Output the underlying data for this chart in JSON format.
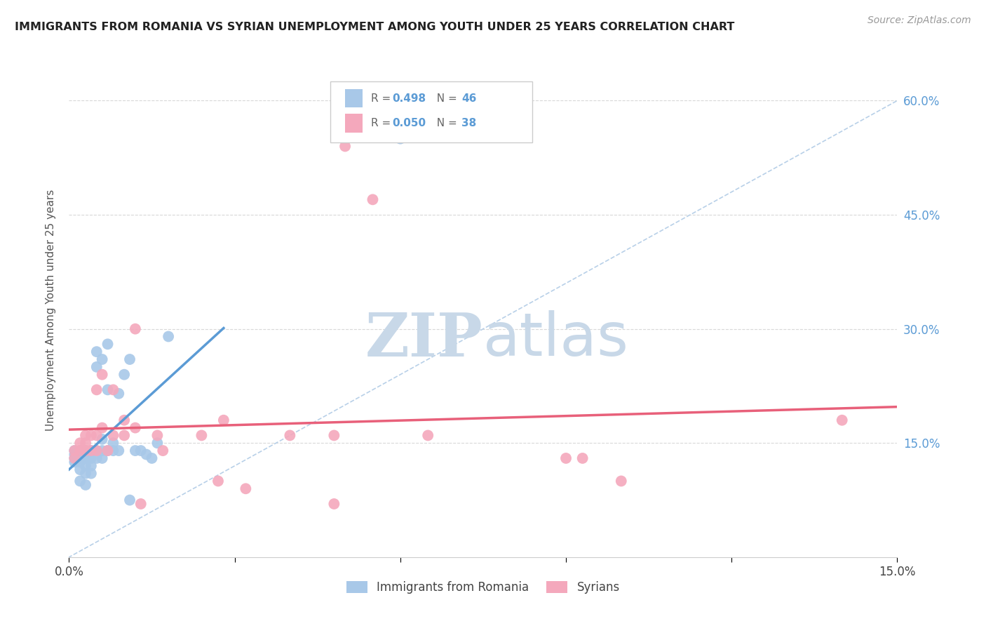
{
  "title": "IMMIGRANTS FROM ROMANIA VS SYRIAN UNEMPLOYMENT AMONG YOUTH UNDER 25 YEARS CORRELATION CHART",
  "source": "Source: ZipAtlas.com",
  "ylabel": "Unemployment Among Youth under 25 years",
  "xlim": [
    0.0,
    0.15
  ],
  "ylim": [
    0.0,
    0.65
  ],
  "romania_R": 0.498,
  "romania_N": 46,
  "syrian_R": 0.05,
  "syrian_N": 38,
  "romania_color": "#a8c8e8",
  "syria_color": "#f4a8bc",
  "romania_line_color": "#5b9bd5",
  "syria_line_color": "#e8607a",
  "diagonal_color": "#b8d0e8",
  "background_color": "#ffffff",
  "grid_color": "#d8d8d8",
  "romania_x": [
    0.001,
    0.001,
    0.001,
    0.001,
    0.002,
    0.002,
    0.002,
    0.002,
    0.002,
    0.002,
    0.003,
    0.003,
    0.003,
    0.003,
    0.003,
    0.003,
    0.004,
    0.004,
    0.004,
    0.004,
    0.004,
    0.005,
    0.005,
    0.005,
    0.005,
    0.006,
    0.006,
    0.006,
    0.006,
    0.007,
    0.007,
    0.007,
    0.008,
    0.008,
    0.009,
    0.009,
    0.01,
    0.011,
    0.011,
    0.012,
    0.013,
    0.014,
    0.015,
    0.016,
    0.018,
    0.06
  ],
  "romania_y": [
    0.125,
    0.13,
    0.135,
    0.14,
    0.1,
    0.115,
    0.125,
    0.13,
    0.135,
    0.14,
    0.095,
    0.11,
    0.12,
    0.13,
    0.135,
    0.14,
    0.11,
    0.12,
    0.13,
    0.135,
    0.14,
    0.13,
    0.14,
    0.25,
    0.27,
    0.13,
    0.14,
    0.155,
    0.26,
    0.14,
    0.22,
    0.28,
    0.14,
    0.15,
    0.14,
    0.215,
    0.24,
    0.075,
    0.26,
    0.14,
    0.14,
    0.135,
    0.13,
    0.15,
    0.29,
    0.55
  ],
  "syria_x": [
    0.001,
    0.001,
    0.002,
    0.002,
    0.003,
    0.003,
    0.003,
    0.004,
    0.004,
    0.005,
    0.005,
    0.005,
    0.006,
    0.006,
    0.007,
    0.008,
    0.008,
    0.01,
    0.01,
    0.012,
    0.012,
    0.013,
    0.016,
    0.017,
    0.024,
    0.027,
    0.028,
    0.032,
    0.04,
    0.048,
    0.048,
    0.05,
    0.055,
    0.065,
    0.09,
    0.093,
    0.1,
    0.14
  ],
  "syria_y": [
    0.14,
    0.13,
    0.15,
    0.14,
    0.16,
    0.15,
    0.14,
    0.14,
    0.16,
    0.22,
    0.16,
    0.14,
    0.24,
    0.17,
    0.14,
    0.22,
    0.16,
    0.16,
    0.18,
    0.3,
    0.17,
    0.07,
    0.16,
    0.14,
    0.16,
    0.1,
    0.18,
    0.09,
    0.16,
    0.07,
    0.16,
    0.54,
    0.47,
    0.16,
    0.13,
    0.13,
    0.1,
    0.18
  ],
  "watermark_zip": "ZIP",
  "watermark_atlas": "atlas",
  "watermark_color": "#c8d8e8"
}
